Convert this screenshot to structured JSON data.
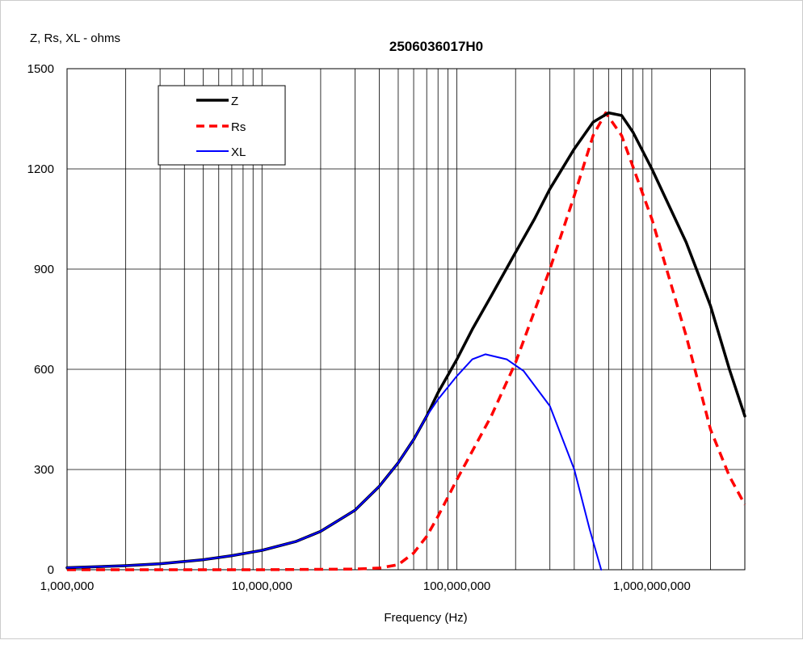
{
  "chart_data": {
    "type": "line",
    "title": "2506036017H0",
    "ylabel": "Z, Rs, XL - ohms",
    "xlabel": "Frequency (Hz)",
    "xscale": "log",
    "xlim": [
      1000000,
      3000000000
    ],
    "ylim": [
      0,
      1500
    ],
    "grid": true,
    "legend_position": "top-left",
    "yticks": [
      "0",
      "300",
      "600",
      "900",
      "1200",
      "1500"
    ],
    "xticks": [
      {
        "value": 1000000,
        "label": "1,000,000"
      },
      {
        "value": 10000000,
        "label": "10,000,000"
      },
      {
        "value": 100000000,
        "label": "100,000,000"
      },
      {
        "value": 1000000000,
        "label": "1,000,000,000"
      }
    ],
    "series": [
      {
        "name": "Z",
        "color": "#000000",
        "style": "solid",
        "points": [
          [
            1000000,
            6
          ],
          [
            2000000,
            12
          ],
          [
            3000000,
            18
          ],
          [
            5000000,
            30
          ],
          [
            7000000,
            42
          ],
          [
            10000000,
            58
          ],
          [
            15000000,
            85
          ],
          [
            20000000,
            115
          ],
          [
            30000000,
            178
          ],
          [
            40000000,
            250
          ],
          [
            50000000,
            320
          ],
          [
            60000000,
            390
          ],
          [
            70000000,
            460
          ],
          [
            80000000,
            530
          ],
          [
            100000000,
            630
          ],
          [
            120000000,
            720
          ],
          [
            150000000,
            820
          ],
          [
            200000000,
            950
          ],
          [
            250000000,
            1050
          ],
          [
            300000000,
            1140
          ],
          [
            400000000,
            1260
          ],
          [
            500000000,
            1340
          ],
          [
            600000000,
            1368
          ],
          [
            700000000,
            1360
          ],
          [
            800000000,
            1310
          ],
          [
            1000000000,
            1200
          ],
          [
            1500000000,
            980
          ],
          [
            2000000000,
            790
          ],
          [
            2500000000,
            600
          ],
          [
            3000000000,
            460
          ]
        ]
      },
      {
        "name": "Rs",
        "color": "#ff0000",
        "style": "dashed",
        "points": [
          [
            1000000,
            0
          ],
          [
            10000000,
            0
          ],
          [
            30000000,
            2
          ],
          [
            40000000,
            5
          ],
          [
            50000000,
            15
          ],
          [
            60000000,
            50
          ],
          [
            70000000,
            100
          ],
          [
            80000000,
            160
          ],
          [
            100000000,
            270
          ],
          [
            150000000,
            460
          ],
          [
            200000000,
            620
          ],
          [
            300000000,
            900
          ],
          [
            400000000,
            1120
          ],
          [
            500000000,
            1300
          ],
          [
            580000000,
            1368
          ],
          [
            700000000,
            1300
          ],
          [
            1000000000,
            1050
          ],
          [
            1500000000,
            700
          ],
          [
            2000000000,
            420
          ],
          [
            2500000000,
            280
          ],
          [
            3000000000,
            195
          ]
        ]
      },
      {
        "name": "XL",
        "color": "#0000ff",
        "style": "solid",
        "points": [
          [
            1000000,
            6
          ],
          [
            2000000,
            12
          ],
          [
            3000000,
            18
          ],
          [
            5000000,
            30
          ],
          [
            7000000,
            42
          ],
          [
            10000000,
            58
          ],
          [
            15000000,
            85
          ],
          [
            20000000,
            115
          ],
          [
            30000000,
            178
          ],
          [
            40000000,
            250
          ],
          [
            50000000,
            320
          ],
          [
            60000000,
            390
          ],
          [
            70000000,
            460
          ],
          [
            80000000,
            510
          ],
          [
            100000000,
            580
          ],
          [
            120000000,
            630
          ],
          [
            140000000,
            645
          ],
          [
            180000000,
            630
          ],
          [
            220000000,
            595
          ],
          [
            300000000,
            490
          ],
          [
            400000000,
            300
          ],
          [
            480000000,
            120
          ],
          [
            550000000,
            0
          ]
        ]
      }
    ]
  }
}
